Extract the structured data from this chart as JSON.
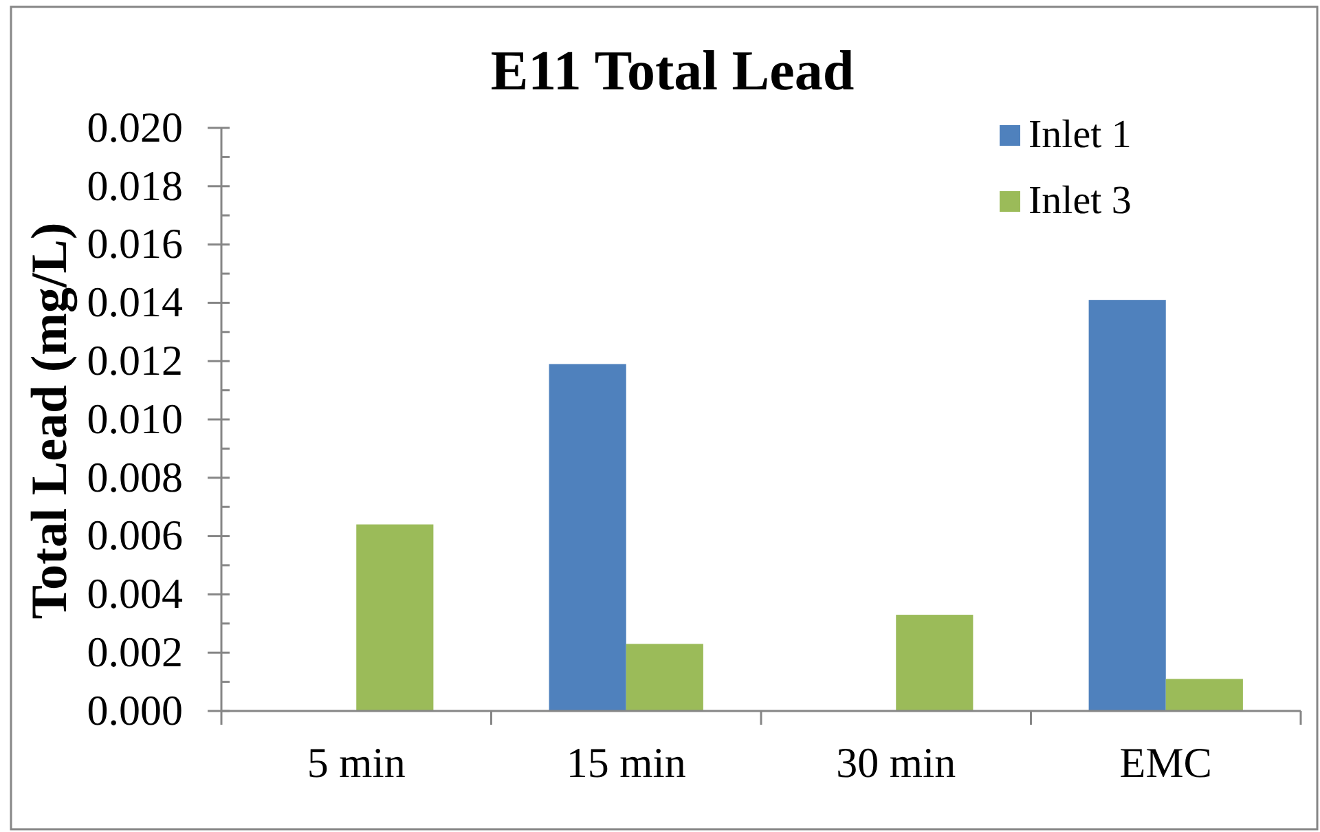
{
  "chart_data": {
    "type": "bar",
    "title": "E11 Total Lead",
    "ylabel": "Total Lead (mg/L)",
    "categories": [
      "5 min",
      "15 min",
      "30 min",
      "EMC"
    ],
    "series": [
      {
        "name": "Inlet 1",
        "color": "#4f81bd",
        "values": [
          null,
          0.0119,
          null,
          0.0141
        ]
      },
      {
        "name": "Inlet 3",
        "color": "#9bbb59",
        "values": [
          0.0064,
          0.0023,
          0.0033,
          0.0011
        ]
      }
    ],
    "ylim": [
      0,
      0.02
    ],
    "yticks": [
      {
        "value": 0,
        "label": "0.000"
      },
      {
        "value": 0.001,
        "label": null
      },
      {
        "value": 0.002,
        "label": "0.002"
      },
      {
        "value": 0.003,
        "label": null
      },
      {
        "value": 0.004,
        "label": "0.004"
      },
      {
        "value": 0.005,
        "label": null
      },
      {
        "value": 0.006,
        "label": "0.006"
      },
      {
        "value": 0.007,
        "label": null
      },
      {
        "value": 0.008,
        "label": "0.008"
      },
      {
        "value": 0.009,
        "label": null
      },
      {
        "value": 0.01,
        "label": "0.010"
      },
      {
        "value": 0.011,
        "label": null
      },
      {
        "value": 0.012,
        "label": "0.012"
      },
      {
        "value": 0.013,
        "label": null
      },
      {
        "value": 0.014,
        "label": "0.014"
      },
      {
        "value": 0.015,
        "label": null
      },
      {
        "value": 0.016,
        "label": "0.016"
      },
      {
        "value": 0.017,
        "label": null
      },
      {
        "value": 0.018,
        "label": "0.018"
      },
      {
        "value": 0.019,
        "label": null
      },
      {
        "value": 0.02,
        "label": "0.020"
      }
    ],
    "legend": "top right"
  }
}
